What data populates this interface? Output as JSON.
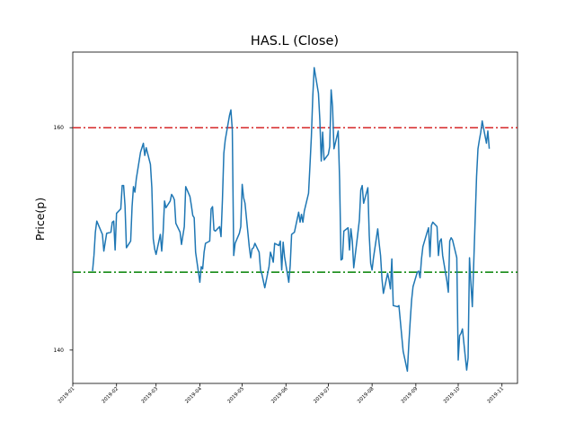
{
  "chart_data": {
    "type": "line",
    "title": "HAS.L (Close)",
    "xlabel": "",
    "ylabel": "Price(p)",
    "x_ticks": [
      "2019-01",
      "2019-02",
      "2019-03",
      "2019-04",
      "2019-05",
      "2019-06",
      "2019-07",
      "2019-08",
      "2019-09",
      "2019-10",
      "2019-11"
    ],
    "y_ticks": [
      140,
      160
    ],
    "xlim": [
      "2019-01-01",
      "2019-11-12"
    ],
    "ylim": [
      137,
      166.8
    ],
    "grid": false,
    "colors": {
      "series": "#1f77b4",
      "upper_line": "#d62728",
      "lower_line": "#008000"
    },
    "hlines": [
      {
        "y": 160.0,
        "color": "#d62728",
        "style": "dash-dot"
      },
      {
        "y": 147.0,
        "color": "#008000",
        "style": "dash-dot"
      }
    ],
    "series": [
      {
        "points": [
          [
            "2019-01-15",
            147.1
          ],
          [
            "2019-01-16",
            148.5
          ],
          [
            "2019-01-17",
            150.6
          ],
          [
            "2019-01-18",
            151.6
          ],
          [
            "2019-01-21",
            150.7
          ],
          [
            "2019-01-22",
            150.4
          ],
          [
            "2019-01-23",
            148.9
          ],
          [
            "2019-01-24",
            149.7
          ],
          [
            "2019-01-25",
            150.5
          ],
          [
            "2019-01-28",
            150.6
          ],
          [
            "2019-01-29",
            151.5
          ],
          [
            "2019-01-30",
            151.6
          ],
          [
            "2019-01-31",
            149.0
          ],
          [
            "2019-02-01",
            152.3
          ],
          [
            "2019-02-04",
            152.7
          ],
          [
            "2019-02-05",
            154.8
          ],
          [
            "2019-02-06",
            154.8
          ],
          [
            "2019-02-07",
            153.0
          ],
          [
            "2019-02-08",
            149.2
          ],
          [
            "2019-02-11",
            149.8
          ],
          [
            "2019-02-12",
            152.9
          ],
          [
            "2019-02-13",
            154.7
          ],
          [
            "2019-02-14",
            154.2
          ],
          [
            "2019-02-15",
            155.4
          ],
          [
            "2019-02-18",
            157.8
          ],
          [
            "2019-02-19",
            158.2
          ],
          [
            "2019-02-20",
            158.6
          ],
          [
            "2019-02-21",
            157.5
          ],
          [
            "2019-02-22",
            158.2
          ],
          [
            "2019-02-25",
            156.7
          ],
          [
            "2019-02-26",
            154.6
          ],
          [
            "2019-02-27",
            150.0
          ],
          [
            "2019-02-28",
            149.1
          ],
          [
            "2019-03-01",
            148.6
          ],
          [
            "2019-03-04",
            150.4
          ],
          [
            "2019-03-05",
            148.9
          ],
          [
            "2019-03-06",
            150.6
          ],
          [
            "2019-03-07",
            153.4
          ],
          [
            "2019-03-08",
            152.8
          ],
          [
            "2019-03-11",
            153.4
          ],
          [
            "2019-03-12",
            154.0
          ],
          [
            "2019-03-13",
            153.8
          ],
          [
            "2019-03-14",
            153.5
          ],
          [
            "2019-03-15",
            151.4
          ],
          [
            "2019-03-18",
            150.6
          ],
          [
            "2019-03-19",
            149.5
          ],
          [
            "2019-03-20",
            150.3
          ],
          [
            "2019-03-21",
            151.1
          ],
          [
            "2019-03-22",
            154.7
          ],
          [
            "2019-03-25",
            153.8
          ],
          [
            "2019-03-26",
            153.0
          ],
          [
            "2019-03-27",
            152.1
          ],
          [
            "2019-03-28",
            151.9
          ],
          [
            "2019-03-29",
            148.8
          ],
          [
            "2019-04-01",
            146.1
          ],
          [
            "2019-04-02",
            147.5
          ],
          [
            "2019-04-03",
            147.3
          ],
          [
            "2019-04-04",
            148.8
          ],
          [
            "2019-04-05",
            149.6
          ],
          [
            "2019-04-08",
            149.8
          ],
          [
            "2019-04-09",
            152.7
          ],
          [
            "2019-04-10",
            152.9
          ],
          [
            "2019-04-11",
            150.8
          ],
          [
            "2019-04-12",
            150.7
          ],
          [
            "2019-04-15",
            151.1
          ],
          [
            "2019-04-16",
            150.2
          ],
          [
            "2019-04-17",
            153.5
          ],
          [
            "2019-04-18",
            157.7
          ],
          [
            "2019-04-19",
            158.9
          ],
          [
            "2019-04-22",
            161.1
          ],
          [
            "2019-04-23",
            161.6
          ],
          [
            "2019-04-24",
            159.8
          ],
          [
            "2019-04-25",
            148.5
          ],
          [
            "2019-04-26",
            149.6
          ],
          [
            "2019-04-29",
            150.5
          ],
          [
            "2019-04-30",
            151.1
          ],
          [
            "2019-05-01",
            154.9
          ],
          [
            "2019-05-02",
            153.7
          ],
          [
            "2019-05-03",
            153.2
          ],
          [
            "2019-05-06",
            149.3
          ],
          [
            "2019-05-07",
            148.3
          ],
          [
            "2019-05-08",
            149.1
          ],
          [
            "2019-05-09",
            149.2
          ],
          [
            "2019-05-10",
            149.6
          ],
          [
            "2019-05-13",
            148.8
          ],
          [
            "2019-05-14",
            147.2
          ],
          [
            "2019-05-15",
            146.8
          ],
          [
            "2019-05-16",
            146.2
          ],
          [
            "2019-05-17",
            145.6
          ],
          [
            "2019-05-20",
            147.5
          ],
          [
            "2019-05-21",
            148.8
          ],
          [
            "2019-05-22",
            148.4
          ],
          [
            "2019-05-23",
            147.9
          ],
          [
            "2019-05-24",
            149.6
          ],
          [
            "2019-05-27",
            149.4
          ],
          [
            "2019-05-28",
            149.8
          ],
          [
            "2019-05-29",
            147.2
          ],
          [
            "2019-05-30",
            149.7
          ],
          [
            "2019-05-31",
            148.4
          ],
          [
            "2019-06-03",
            146.1
          ],
          [
            "2019-06-04",
            147.6
          ],
          [
            "2019-06-05",
            150.4
          ],
          [
            "2019-06-06",
            150.5
          ],
          [
            "2019-06-07",
            150.6
          ],
          [
            "2019-06-10",
            152.4
          ],
          [
            "2019-06-11",
            151.5
          ],
          [
            "2019-06-12",
            152.2
          ],
          [
            "2019-06-13",
            151.5
          ],
          [
            "2019-06-14",
            152.5
          ],
          [
            "2019-06-17",
            154.1
          ],
          [
            "2019-06-18",
            156.6
          ],
          [
            "2019-06-19",
            159.2
          ],
          [
            "2019-06-20",
            162.8
          ],
          [
            "2019-06-21",
            165.4
          ],
          [
            "2019-06-24",
            163.1
          ],
          [
            "2019-06-25",
            160.7
          ],
          [
            "2019-06-26",
            157.0
          ],
          [
            "2019-06-27",
            159.6
          ],
          [
            "2019-06-28",
            157.1
          ],
          [
            "2019-07-01",
            157.6
          ],
          [
            "2019-07-02",
            158.3
          ],
          [
            "2019-07-03",
            163.4
          ],
          [
            "2019-07-04",
            161.9
          ],
          [
            "2019-07-05",
            158.1
          ],
          [
            "2019-07-08",
            159.7
          ],
          [
            "2019-07-09",
            155.3
          ],
          [
            "2019-07-10",
            148.1
          ],
          [
            "2019-07-11",
            148.2
          ],
          [
            "2019-07-12",
            150.7
          ],
          [
            "2019-07-15",
            151.0
          ],
          [
            "2019-07-16",
            149.0
          ],
          [
            "2019-07-17",
            150.9
          ],
          [
            "2019-07-18",
            149.8
          ],
          [
            "2019-07-19",
            147.4
          ],
          [
            "2019-07-22",
            150.6
          ],
          [
            "2019-07-23",
            151.7
          ],
          [
            "2019-07-24",
            154.4
          ],
          [
            "2019-07-25",
            154.8
          ],
          [
            "2019-07-26",
            153.2
          ],
          [
            "2019-07-29",
            154.6
          ],
          [
            "2019-07-30",
            150.3
          ],
          [
            "2019-07-31",
            147.8
          ],
          [
            "2019-08-01",
            147.2
          ],
          [
            "2019-08-02",
            148.3
          ],
          [
            "2019-08-05",
            150.9
          ],
          [
            "2019-08-06",
            149.6
          ],
          [
            "2019-08-07",
            148.5
          ],
          [
            "2019-08-08",
            146.4
          ],
          [
            "2019-08-09",
            145.1
          ],
          [
            "2019-08-12",
            146.9
          ],
          [
            "2019-08-13",
            146.3
          ],
          [
            "2019-08-14",
            145.5
          ],
          [
            "2019-08-15",
            148.2
          ],
          [
            "2019-08-16",
            144.0
          ],
          [
            "2019-08-19",
            143.9
          ],
          [
            "2019-08-20",
            144.0
          ],
          [
            "2019-08-23",
            139.9
          ],
          [
            "2019-08-26",
            138.1
          ],
          [
            "2019-08-27",
            140.5
          ],
          [
            "2019-08-28",
            142.6
          ],
          [
            "2019-08-29",
            144.5
          ],
          [
            "2019-08-30",
            145.7
          ],
          [
            "2019-09-02",
            147.0
          ],
          [
            "2019-09-03",
            147.1
          ],
          [
            "2019-09-04",
            146.5
          ],
          [
            "2019-09-05",
            148.2
          ],
          [
            "2019-09-06",
            149.3
          ],
          [
            "2019-09-09",
            150.6
          ],
          [
            "2019-09-10",
            151.0
          ],
          [
            "2019-09-11",
            148.4
          ],
          [
            "2019-09-12",
            151.2
          ],
          [
            "2019-09-13",
            151.5
          ],
          [
            "2019-09-16",
            151.1
          ],
          [
            "2019-09-17",
            148.5
          ],
          [
            "2019-09-18",
            149.8
          ],
          [
            "2019-09-19",
            150.0
          ],
          [
            "2019-09-20",
            148.5
          ],
          [
            "2019-09-23",
            146.2
          ],
          [
            "2019-09-24",
            145.2
          ],
          [
            "2019-09-25",
            149.8
          ],
          [
            "2019-09-26",
            150.1
          ],
          [
            "2019-09-27",
            149.9
          ],
          [
            "2019-09-30",
            148.3
          ],
          [
            "2019-10-01",
            139.1
          ],
          [
            "2019-10-02",
            141.3
          ],
          [
            "2019-10-03",
            141.5
          ],
          [
            "2019-10-04",
            141.9
          ],
          [
            "2019-10-07",
            138.2
          ],
          [
            "2019-10-08",
            139.3
          ],
          [
            "2019-10-09",
            148.3
          ],
          [
            "2019-10-10",
            146.0
          ],
          [
            "2019-10-11",
            143.9
          ],
          [
            "2019-10-14",
            155.6
          ],
          [
            "2019-10-15",
            158.1
          ],
          [
            "2019-10-16",
            158.9
          ],
          [
            "2019-10-17",
            159.6
          ],
          [
            "2019-10-18",
            160.6
          ],
          [
            "2019-10-21",
            158.6
          ],
          [
            "2019-10-22",
            159.7
          ],
          [
            "2019-10-23",
            158.1
          ]
        ]
      }
    ]
  }
}
